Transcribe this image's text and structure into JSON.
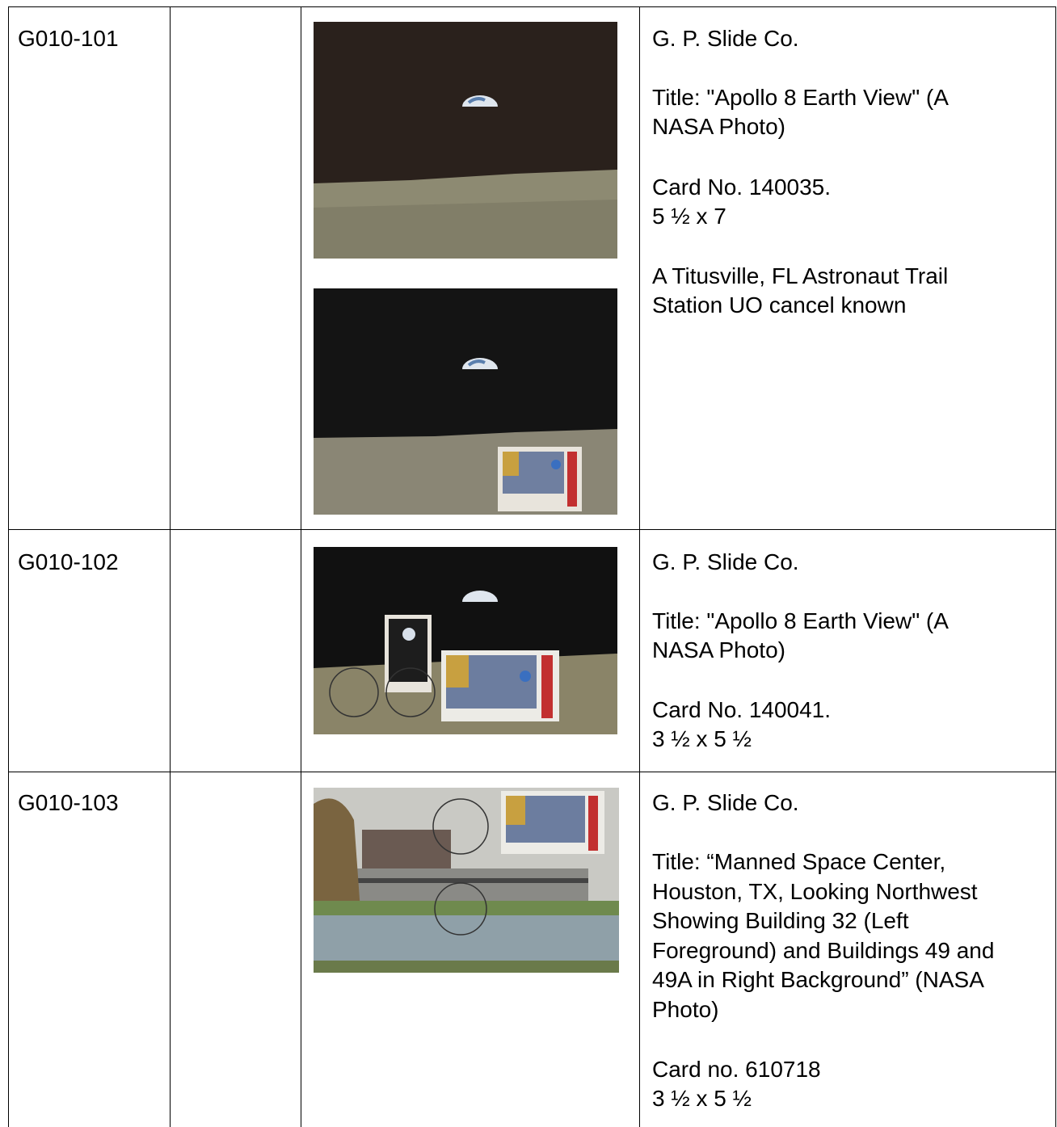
{
  "table": {
    "rows": [
      {
        "id": "G010-101",
        "description": [
          [
            "G. P. Slide Co."
          ],
          [
            "Title: \"Apollo 8 Earth View\" (A",
            "NASA Photo)"
          ],
          [
            "Card No. 140035.",
            "5 ½  x 7"
          ],
          [
            "A Titusville, FL Astronaut Trail",
            "Station UO cancel known"
          ]
        ]
      },
      {
        "id": "G010-102",
        "description": [
          [
            "G. P. Slide Co."
          ],
          [
            "Title: \"Apollo 8 Earth View\" (A",
            "NASA Photo)"
          ],
          [
            "Card No. 140041.",
            "3 ½ x 5 ½"
          ]
        ]
      },
      {
        "id": "G010-103",
        "description": [
          [
            "G. P. Slide Co."
          ],
          [
            "Title: “Manned Space Center,",
            "Houston, TX, Looking Northwest",
            "Showing Building 32 (Left",
            "Foreground) and Buildings 49 and",
            "49A in Right Background” (NASA",
            "Photo)"
          ],
          [
            "Card no. 610718",
            "3 ½ x 5 ½"
          ]
        ]
      }
    ]
  }
}
